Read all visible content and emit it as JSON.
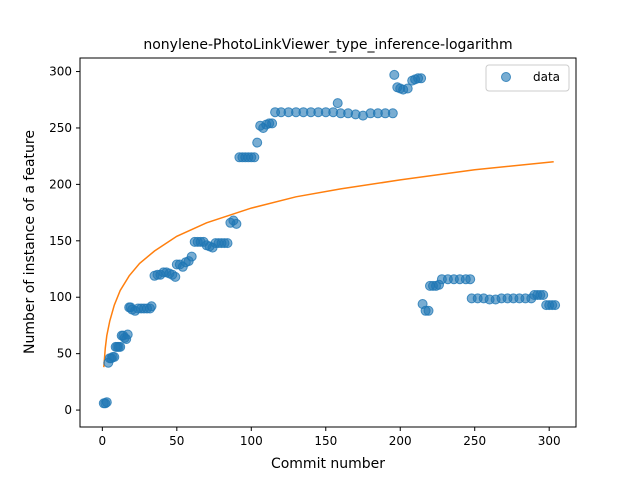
{
  "chart_data": {
    "type": "scatter",
    "title": "nonylene-PhotoLinkViewer_type_inference-logarithm",
    "xlabel": "Commit number",
    "ylabel": "Number of instance of a feature",
    "xlim": [
      -15,
      318
    ],
    "ylim": [
      -15,
      312
    ],
    "xticks": [
      0,
      50,
      100,
      150,
      200,
      250,
      300
    ],
    "yticks": [
      0,
      50,
      100,
      150,
      200,
      250,
      300
    ],
    "grid": false,
    "legend": {
      "placement": "top-right",
      "entries": [
        "data"
      ]
    },
    "colors": {
      "data": "#1f77b4",
      "fit": "#ff7f0e"
    },
    "series": [
      {
        "name": "data",
        "kind": "scatter",
        "points": [
          [
            1,
            6
          ],
          [
            2,
            6
          ],
          [
            3,
            7
          ],
          [
            4,
            42
          ],
          [
            5,
            46
          ],
          [
            6,
            46
          ],
          [
            7,
            47
          ],
          [
            8,
            47
          ],
          [
            9,
            56
          ],
          [
            10,
            56
          ],
          [
            11,
            56
          ],
          [
            12,
            56
          ],
          [
            13,
            66
          ],
          [
            14,
            66
          ],
          [
            15,
            64
          ],
          [
            16,
            63
          ],
          [
            17,
            67
          ],
          [
            18,
            91
          ],
          [
            19,
            91
          ],
          [
            20,
            89
          ],
          [
            22,
            88
          ],
          [
            24,
            90
          ],
          [
            26,
            90
          ],
          [
            28,
            90
          ],
          [
            30,
            90
          ],
          [
            32,
            90
          ],
          [
            33,
            92
          ],
          [
            35,
            119
          ],
          [
            37,
            120
          ],
          [
            39,
            120
          ],
          [
            41,
            122
          ],
          [
            43,
            122
          ],
          [
            45,
            121
          ],
          [
            47,
            120
          ],
          [
            49,
            118
          ],
          [
            50,
            129
          ],
          [
            52,
            129
          ],
          [
            54,
            127
          ],
          [
            56,
            131
          ],
          [
            58,
            132
          ],
          [
            60,
            136
          ],
          [
            62,
            149
          ],
          [
            64,
            149
          ],
          [
            66,
            149
          ],
          [
            68,
            149
          ],
          [
            70,
            146
          ],
          [
            72,
            145
          ],
          [
            74,
            144
          ],
          [
            76,
            148
          ],
          [
            78,
            148
          ],
          [
            80,
            148
          ],
          [
            82,
            148
          ],
          [
            84,
            148
          ],
          [
            86,
            166
          ],
          [
            88,
            168
          ],
          [
            90,
            165
          ],
          [
            92,
            224
          ],
          [
            94,
            224
          ],
          [
            96,
            224
          ],
          [
            98,
            224
          ],
          [
            100,
            224
          ],
          [
            102,
            224
          ],
          [
            104,
            237
          ],
          [
            106,
            252
          ],
          [
            108,
            250
          ],
          [
            110,
            253
          ],
          [
            112,
            254
          ],
          [
            114,
            254
          ],
          [
            116,
            264
          ],
          [
            120,
            264
          ],
          [
            125,
            264
          ],
          [
            130,
            264
          ],
          [
            135,
            264
          ],
          [
            140,
            264
          ],
          [
            145,
            264
          ],
          [
            150,
            264
          ],
          [
            155,
            264
          ],
          [
            158,
            272
          ],
          [
            160,
            263
          ],
          [
            165,
            263
          ],
          [
            170,
            262
          ],
          [
            175,
            261
          ],
          [
            180,
            263
          ],
          [
            185,
            263
          ],
          [
            190,
            263
          ],
          [
            195,
            263
          ],
          [
            196,
            297
          ],
          [
            198,
            286
          ],
          [
            200,
            285
          ],
          [
            202,
            284
          ],
          [
            205,
            285
          ],
          [
            208,
            292
          ],
          [
            210,
            293
          ],
          [
            212,
            294
          ],
          [
            214,
            294
          ],
          [
            215,
            94
          ],
          [
            217,
            88
          ],
          [
            219,
            88
          ],
          [
            220,
            110
          ],
          [
            222,
            110
          ],
          [
            224,
            110
          ],
          [
            226,
            111
          ],
          [
            228,
            116
          ],
          [
            232,
            116
          ],
          [
            236,
            116
          ],
          [
            240,
            116
          ],
          [
            244,
            116
          ],
          [
            247,
            116
          ],
          [
            248,
            99
          ],
          [
            252,
            99
          ],
          [
            256,
            99
          ],
          [
            260,
            98
          ],
          [
            264,
            98
          ],
          [
            268,
            99
          ],
          [
            272,
            99
          ],
          [
            276,
            99
          ],
          [
            280,
            99
          ],
          [
            284,
            99
          ],
          [
            288,
            99
          ],
          [
            290,
            102
          ],
          [
            292,
            102
          ],
          [
            294,
            102
          ],
          [
            296,
            102
          ],
          [
            298,
            93
          ],
          [
            300,
            93
          ],
          [
            302,
            93
          ],
          [
            304,
            93
          ]
        ]
      },
      {
        "name": "",
        "kind": "line",
        "x": [
          1,
          2,
          3,
          5,
          8,
          12,
          18,
          25,
          35,
          50,
          70,
          100,
          130,
          160,
          200,
          250,
          303
        ],
        "y": [
          38,
          55,
          66,
          79,
          93,
          106,
          119,
          130,
          141,
          154,
          166,
          179,
          189,
          196,
          204,
          213,
          220
        ]
      }
    ]
  }
}
